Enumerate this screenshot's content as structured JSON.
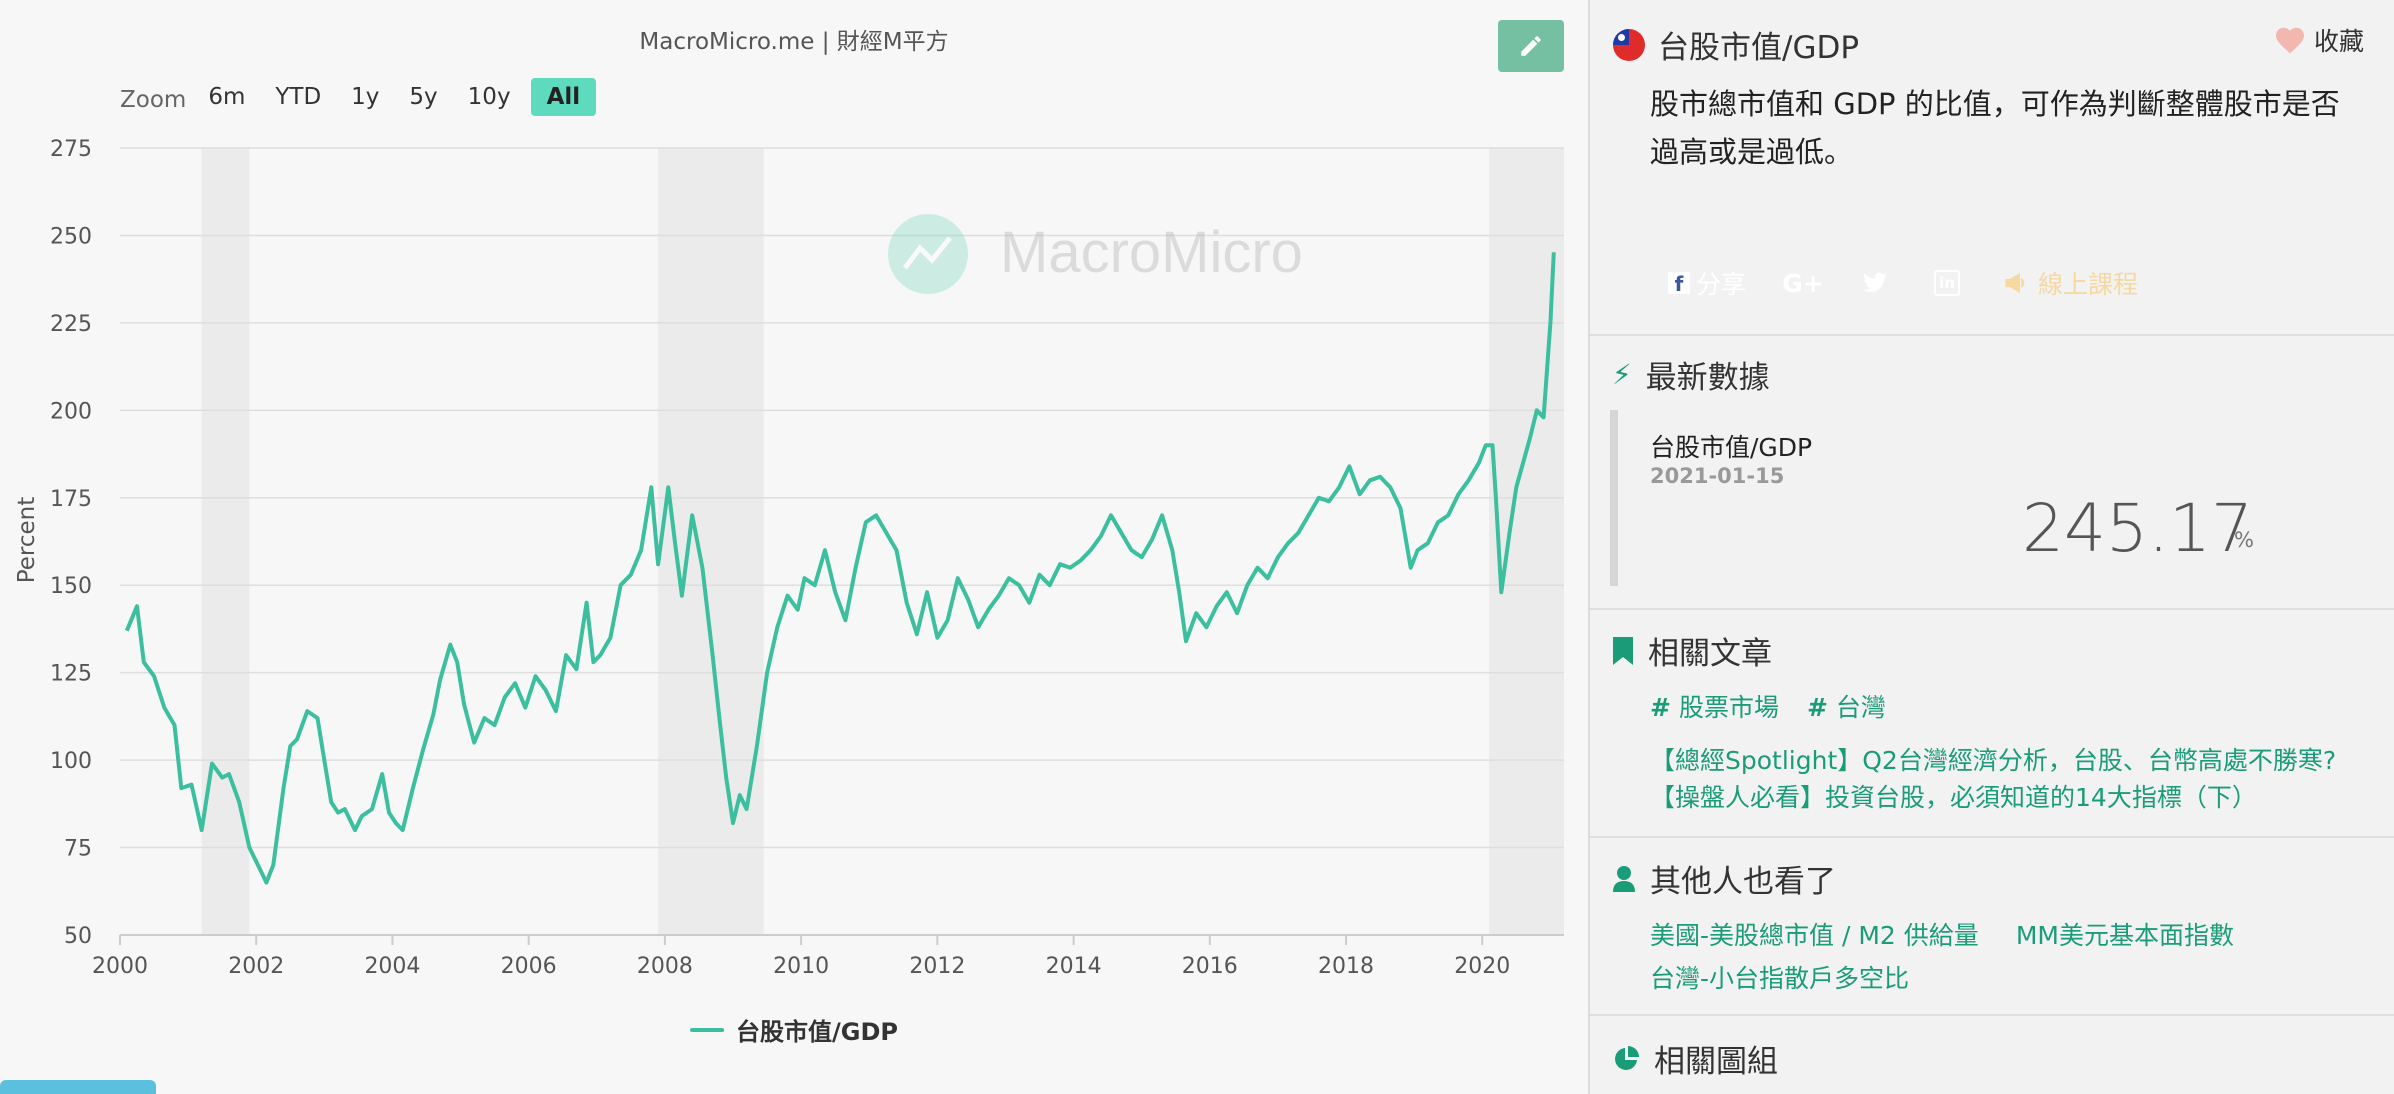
{
  "credit": "MacroMicro.me | 財經M平方",
  "watermark": "MacroMicro",
  "zoom": {
    "label": "Zoom",
    "options": [
      "6m",
      "YTD",
      "1y",
      "5y",
      "10y",
      "All"
    ],
    "active": "All"
  },
  "colors": {
    "series": "#3bbf9f",
    "recession": "#ebebeb",
    "accent": "#1a9c78"
  },
  "chart_data": {
    "type": "line",
    "title": "",
    "xlabel": "",
    "ylabel": "Percent",
    "xlim": [
      2000,
      2021.2
    ],
    "ylim": [
      50,
      275
    ],
    "yticks": [
      50,
      75,
      100,
      125,
      150,
      175,
      200,
      225,
      250,
      275
    ],
    "xticks": [
      "2000",
      "2002",
      "2004",
      "2006",
      "2008",
      "2010",
      "2012",
      "2014",
      "2016",
      "2018",
      "2020"
    ],
    "shaded_periods": [
      [
        2001.2,
        2001.9
      ],
      [
        2007.9,
        2009.45
      ],
      [
        2020.1,
        2021.2
      ]
    ],
    "grid": true,
    "legend_position": "bottom-center",
    "series": [
      {
        "name": "台股市值/GDP",
        "points": [
          [
            2000.1,
            137
          ],
          [
            2000.25,
            144
          ],
          [
            2000.35,
            128
          ],
          [
            2000.5,
            124
          ],
          [
            2000.65,
            115
          ],
          [
            2000.8,
            110
          ],
          [
            2000.9,
            92
          ],
          [
            2001.05,
            93
          ],
          [
            2001.2,
            80
          ],
          [
            2001.35,
            99
          ],
          [
            2001.5,
            95
          ],
          [
            2001.6,
            96
          ],
          [
            2001.75,
            88
          ],
          [
            2001.9,
            75
          ],
          [
            2002.0,
            71
          ],
          [
            2002.15,
            65
          ],
          [
            2002.25,
            70
          ],
          [
            2002.4,
            92
          ],
          [
            2002.5,
            104
          ],
          [
            2002.6,
            106
          ],
          [
            2002.75,
            114
          ],
          [
            2002.9,
            112
          ],
          [
            2003.0,
            100
          ],
          [
            2003.1,
            88
          ],
          [
            2003.2,
            85
          ],
          [
            2003.3,
            86
          ],
          [
            2003.45,
            80
          ],
          [
            2003.55,
            84
          ],
          [
            2003.7,
            86
          ],
          [
            2003.85,
            96
          ],
          [
            2003.95,
            85
          ],
          [
            2004.05,
            82
          ],
          [
            2004.15,
            80
          ],
          [
            2004.3,
            92
          ],
          [
            2004.45,
            103
          ],
          [
            2004.6,
            113
          ],
          [
            2004.7,
            123
          ],
          [
            2004.85,
            133
          ],
          [
            2004.95,
            128
          ],
          [
            2005.05,
            116
          ],
          [
            2005.2,
            105
          ],
          [
            2005.35,
            112
          ],
          [
            2005.5,
            110
          ],
          [
            2005.65,
            118
          ],
          [
            2005.8,
            122
          ],
          [
            2005.95,
            115
          ],
          [
            2006.1,
            124
          ],
          [
            2006.25,
            120
          ],
          [
            2006.4,
            114
          ],
          [
            2006.55,
            130
          ],
          [
            2006.7,
            126
          ],
          [
            2006.85,
            145
          ],
          [
            2006.95,
            128
          ],
          [
            2007.05,
            130
          ],
          [
            2007.2,
            135
          ],
          [
            2007.35,
            150
          ],
          [
            2007.5,
            153
          ],
          [
            2007.65,
            160
          ],
          [
            2007.8,
            178
          ],
          [
            2007.9,
            156
          ],
          [
            2008.05,
            178
          ],
          [
            2008.15,
            162
          ],
          [
            2008.25,
            147
          ],
          [
            2008.4,
            170
          ],
          [
            2008.55,
            155
          ],
          [
            2008.7,
            130
          ],
          [
            2008.8,
            112
          ],
          [
            2008.9,
            95
          ],
          [
            2009.0,
            82
          ],
          [
            2009.1,
            90
          ],
          [
            2009.2,
            86
          ],
          [
            2009.35,
            104
          ],
          [
            2009.5,
            125
          ],
          [
            2009.65,
            138
          ],
          [
            2009.8,
            147
          ],
          [
            2009.95,
            143
          ],
          [
            2010.05,
            152
          ],
          [
            2010.2,
            150
          ],
          [
            2010.35,
            160
          ],
          [
            2010.5,
            148
          ],
          [
            2010.65,
            140
          ],
          [
            2010.8,
            155
          ],
          [
            2010.95,
            168
          ],
          [
            2011.1,
            170
          ],
          [
            2011.25,
            165
          ],
          [
            2011.4,
            160
          ],
          [
            2011.55,
            145
          ],
          [
            2011.7,
            136
          ],
          [
            2011.85,
            148
          ],
          [
            2012.0,
            135
          ],
          [
            2012.15,
            140
          ],
          [
            2012.3,
            152
          ],
          [
            2012.45,
            146
          ],
          [
            2012.6,
            138
          ],
          [
            2012.75,
            143
          ],
          [
            2012.9,
            147
          ],
          [
            2013.05,
            152
          ],
          [
            2013.2,
            150
          ],
          [
            2013.35,
            145
          ],
          [
            2013.5,
            153
          ],
          [
            2013.65,
            150
          ],
          [
            2013.8,
            156
          ],
          [
            2013.95,
            155
          ],
          [
            2014.1,
            157
          ],
          [
            2014.25,
            160
          ],
          [
            2014.4,
            164
          ],
          [
            2014.55,
            170
          ],
          [
            2014.7,
            165
          ],
          [
            2014.85,
            160
          ],
          [
            2015.0,
            158
          ],
          [
            2015.15,
            163
          ],
          [
            2015.3,
            170
          ],
          [
            2015.45,
            160
          ],
          [
            2015.55,
            148
          ],
          [
            2015.65,
            134
          ],
          [
            2015.8,
            142
          ],
          [
            2015.95,
            138
          ],
          [
            2016.1,
            144
          ],
          [
            2016.25,
            148
          ],
          [
            2016.4,
            142
          ],
          [
            2016.55,
            150
          ],
          [
            2016.7,
            155
          ],
          [
            2016.85,
            152
          ],
          [
            2017.0,
            158
          ],
          [
            2017.15,
            162
          ],
          [
            2017.3,
            165
          ],
          [
            2017.45,
            170
          ],
          [
            2017.6,
            175
          ],
          [
            2017.75,
            174
          ],
          [
            2017.9,
            178
          ],
          [
            2018.05,
            184
          ],
          [
            2018.2,
            176
          ],
          [
            2018.35,
            180
          ],
          [
            2018.5,
            181
          ],
          [
            2018.65,
            178
          ],
          [
            2018.8,
            172
          ],
          [
            2018.95,
            155
          ],
          [
            2019.05,
            160
          ],
          [
            2019.2,
            162
          ],
          [
            2019.35,
            168
          ],
          [
            2019.5,
            170
          ],
          [
            2019.65,
            176
          ],
          [
            2019.8,
            180
          ],
          [
            2019.95,
            185
          ],
          [
            2020.05,
            190
          ],
          [
            2020.15,
            190
          ],
          [
            2020.2,
            175
          ],
          [
            2020.28,
            148
          ],
          [
            2020.4,
            165
          ],
          [
            2020.5,
            178
          ],
          [
            2020.6,
            185
          ],
          [
            2020.7,
            192
          ],
          [
            2020.8,
            200
          ],
          [
            2020.9,
            198
          ],
          [
            2021.0,
            225
          ],
          [
            2021.05,
            245.17
          ]
        ]
      }
    ]
  },
  "side": {
    "title": "台股市值/GDP",
    "favorite_label": "收藏",
    "description": "股市總市值和 GDP 的比值，可作為判斷整體股市是否過高或是過低。",
    "share_buttons": [
      {
        "label": "分享",
        "color": "#3b5998",
        "icon": "facebook-icon"
      },
      {
        "label": "G+",
        "color": "#dd4b39",
        "icon": "google-plus-icon"
      },
      {
        "label": "",
        "color": "#1da1f2",
        "icon": "twitter-icon"
      },
      {
        "label": "",
        "color": "#0077b5",
        "icon": "linkedin-icon"
      },
      {
        "label": "線上課程",
        "color": "#111111",
        "icon": "megaphone-icon"
      }
    ],
    "latest": {
      "heading": "最新數據",
      "series_name": "台股市值/GDP",
      "date": "2021-01-15",
      "value": "245.17",
      "unit": "%"
    },
    "articles": {
      "heading": "相關文章",
      "tags": [
        "股票市場",
        "台灣"
      ],
      "links": [
        "【總經Spotlight】Q2台灣經濟分析，台股、台幣高處不勝寒?",
        "【操盤人必看】投資台股，必須知道的14大指標（下）"
      ]
    },
    "others": {
      "heading": "其他人也看了",
      "links": [
        "美國-美股總市值 / M2 供給量",
        "MM美元基本面指數",
        "台灣-小台指散戶多空比"
      ]
    },
    "groups": {
      "heading": "相關圖組"
    }
  }
}
